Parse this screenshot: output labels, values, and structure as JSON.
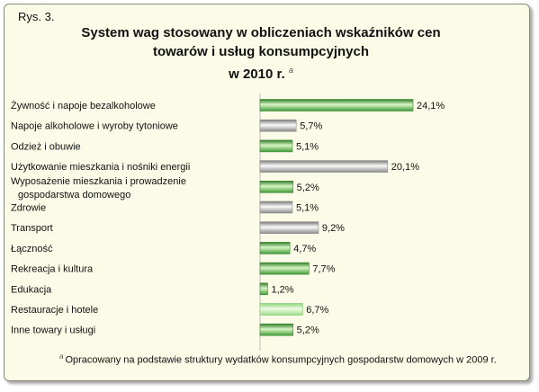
{
  "figure_label": "Rys. 3.",
  "title": {
    "line1": "System wag stosowany w obliczeniach wskaźników cen",
    "line2": "towarów i usług konsumpcyjnych",
    "line3": "w 2010 r.",
    "marker": "a"
  },
  "footnote": {
    "marker": "a",
    "text": "Opracowany na podstawie struktury wydatków konsumpcyjnych gospodarstw domowych w 2009 r."
  },
  "colors": {
    "green_dark": "#4a9e3f",
    "green_light": "#c9efb4",
    "grey_dark": "#8e8e8e",
    "grey_light": "#f2f2f2",
    "background": "#fbfbe8"
  },
  "chart_data": {
    "type": "bar",
    "orientation": "horizontal",
    "categories": [
      [
        "Żywność i napoje bezalkoholowe"
      ],
      [
        "Napoje alkoholowe i wyroby tytoniowe"
      ],
      [
        "Odzież i obuwie"
      ],
      [
        "Użytkowanie mieszkania i nośniki energii"
      ],
      [
        "Wyposażenie mieszkania i prowadzenie",
        "gospodarstwa domowego"
      ],
      [
        "Zdrowie"
      ],
      [
        "Transport"
      ],
      [
        "Łączność"
      ],
      [
        "Rekreacja i kultura"
      ],
      [
        "Edukacja"
      ],
      [
        "Restauracje i hotele"
      ],
      [
        "Inne towary i usługi"
      ]
    ],
    "values": [
      24.1,
      5.7,
      5.1,
      20.1,
      5.2,
      5.1,
      9.2,
      4.7,
      7.7,
      1.2,
      6.7,
      5.2
    ],
    "value_labels": [
      "24,1%",
      "5,7%",
      "5,1%",
      "20,1%",
      "5,2%",
      "5,1%",
      "9,2%",
      "4,7%",
      "7,7%",
      "1,2%",
      "6,7%",
      "5,2%"
    ],
    "bar_styles": [
      "green",
      "grey",
      "green",
      "grey",
      "green",
      "grey",
      "grey",
      "green",
      "green",
      "green",
      "lightgreen",
      "green"
    ],
    "xlim": [
      0,
      24.1
    ],
    "grid": false,
    "legend": "none"
  }
}
